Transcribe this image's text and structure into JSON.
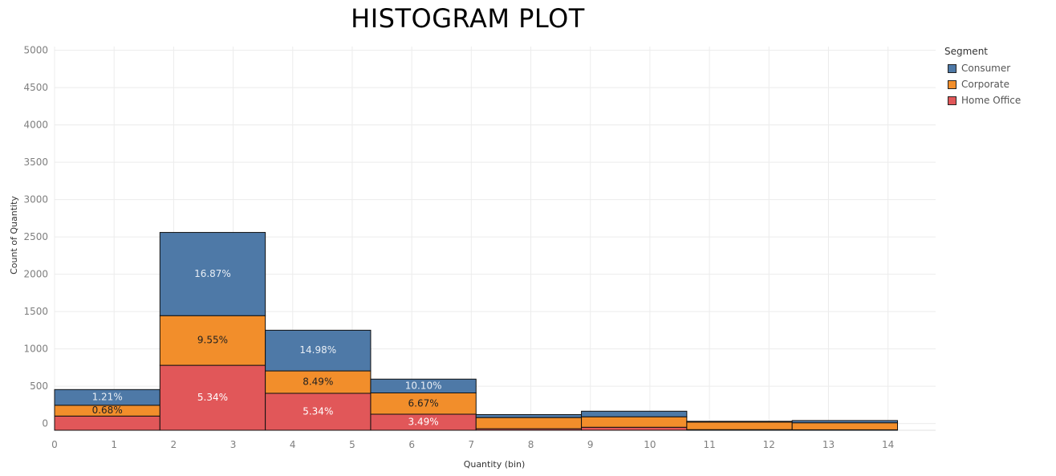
{
  "chart_data": {
    "type": "bar",
    "title": "HISTOGRAM PLOT",
    "xlabel": "Quantity (bin)",
    "ylabel": "Count of Quantity",
    "bin_width": 1.77,
    "xlim": [
      0,
      14.8
    ],
    "ylim": [
      -90,
      5050
    ],
    "x_ticks": [
      0,
      1,
      2,
      3,
      4,
      5,
      6,
      7,
      8,
      9,
      10,
      11,
      12,
      13,
      14
    ],
    "y_ticks": [
      0,
      500,
      1000,
      1500,
      2000,
      2500,
      3000,
      3500,
      4000,
      4500,
      5000
    ],
    "grid": true,
    "legend": {
      "title": "Segment",
      "placement": "right"
    },
    "bins": [
      0,
      1.77,
      3.54,
      5.31,
      7.08,
      8.85,
      10.62,
      12.39
    ],
    "series": [
      {
        "name": "Home Office",
        "color": "#e15759",
        "label_color": "#ffffff",
        "values": [
          100,
          780,
          405,
          125,
          -70,
          -50,
          -82,
          -84
        ],
        "labels": [
          "",
          "5.34%",
          "5.34%",
          "3.49%",
          "",
          "",
          "",
          ""
        ]
      },
      {
        "name": "Corporate",
        "color": "#f28e2b",
        "label_color": "#222222",
        "values": [
          245,
          1445,
          705,
          410,
          80,
          90,
          20,
          10
        ],
        "labels": [
          "0.68%",
          "9.55%",
          "8.49%",
          "6.67%",
          "",
          "",
          "",
          ""
        ]
      },
      {
        "name": "Consumer",
        "color": "#4e79a7",
        "label_color": "#e8eef5",
        "values": [
          455,
          2560,
          1250,
          595,
          120,
          165,
          30,
          40
        ],
        "labels": [
          "1.21%",
          "16.87%",
          "14.98%",
          "10.10%",
          "",
          "",
          "",
          ""
        ]
      }
    ]
  }
}
